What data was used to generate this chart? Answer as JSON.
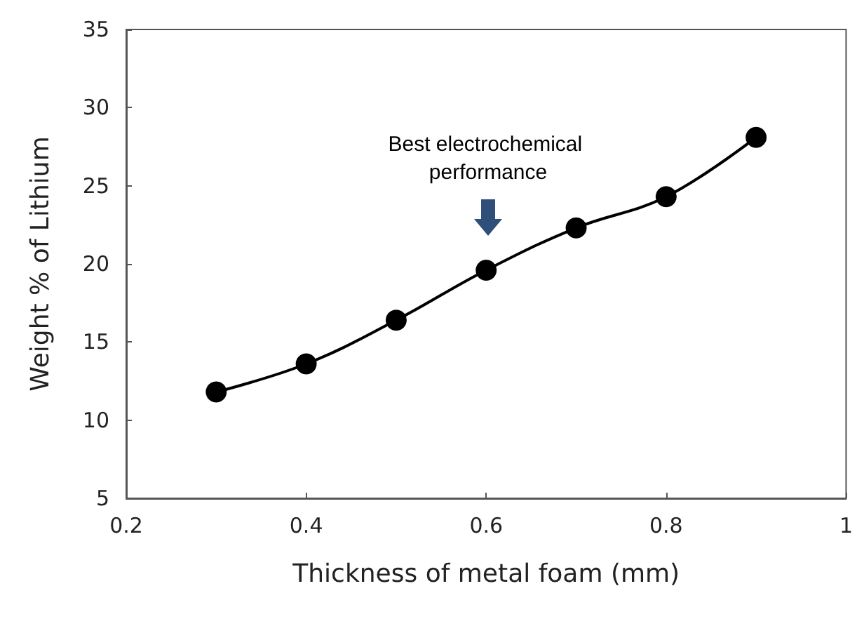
{
  "chart_data": {
    "type": "line",
    "xlabel": "Thickness of metal foam (mm)",
    "ylabel": "Weight % of Lithium",
    "x": [
      0.3,
      0.4,
      0.5,
      0.6,
      0.7,
      0.8,
      0.9
    ],
    "series": [
      {
        "color": "#000000",
        "values": [
          11.8,
          13.6,
          16.4,
          19.6,
          22.3,
          24.3,
          28.1
        ]
      }
    ],
    "xlim": [
      0.2,
      1
    ],
    "xticks": [
      0.2,
      0.4,
      0.6,
      0.8,
      1
    ],
    "ylim": [
      5,
      35
    ],
    "yticks": [
      5,
      10,
      15,
      20,
      25,
      30,
      35
    ],
    "annotations": [
      "Best electrochemical performance"
    ],
    "grid": false,
    "marker": "circle",
    "line_style": "solid"
  }
}
